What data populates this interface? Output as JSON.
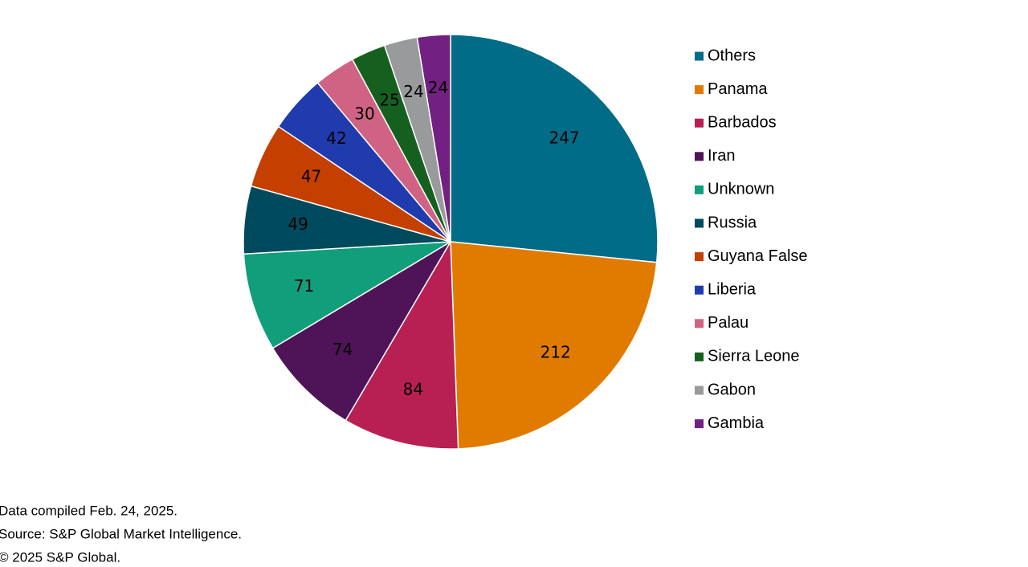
{
  "chart_data": {
    "type": "pie",
    "categories": [
      "Others",
      "Panama",
      "Barbados",
      "Iran",
      "Unknown",
      "Russia",
      "Guyana False",
      "Liberia",
      "Palau",
      "Sierra Leone",
      "Gabon",
      "Gambia"
    ],
    "values": [
      247,
      212,
      84,
      74,
      71,
      49,
      47,
      42,
      30,
      25,
      24,
      24
    ],
    "colors": [
      "#006c87",
      "#e07b00",
      "#b81f52",
      "#4e1457",
      "#119e7a",
      "#004a5e",
      "#c43f00",
      "#1f3bae",
      "#d06384",
      "#16601f",
      "#999a9c",
      "#722082"
    ],
    "legend": "right",
    "notes": [
      "Data compiled Feb. 24, 2025.",
      "Source: S&P Global Market Intelligence.",
      "© 2025 S&P Global."
    ]
  }
}
